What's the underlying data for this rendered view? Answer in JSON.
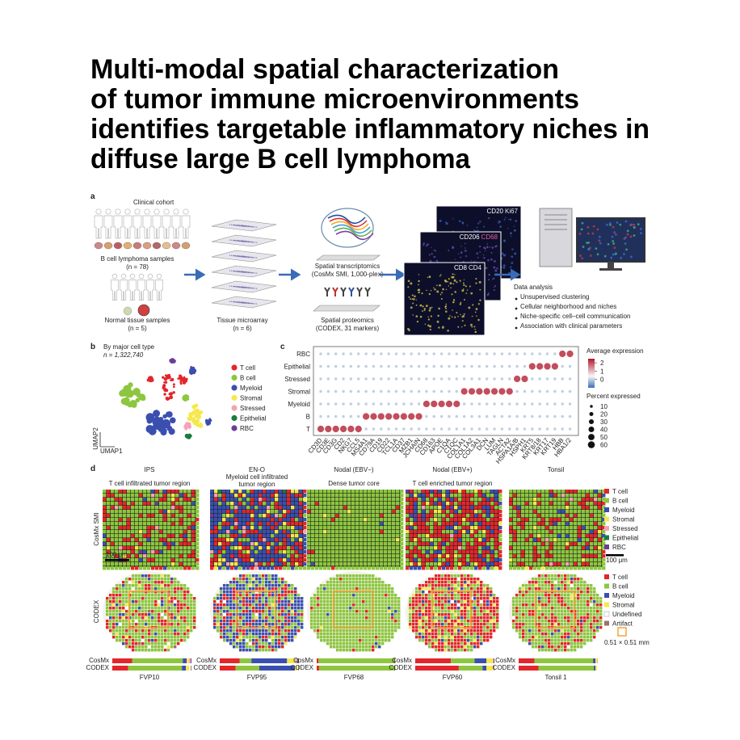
{
  "title": {
    "lines": [
      "Multi-modal spatial characterization",
      "of tumor immune microenvironments",
      "identifies targetable inflammatory niches in",
      "diffuse large B  cell lymphoma"
    ]
  },
  "panel_a": {
    "label": "a",
    "clinical_cohort": "Clinical cohort",
    "lymphoma": "B cell lymphoma samples",
    "lymphoma_n": "(n = 78)",
    "normal": "Normal tissue samples",
    "normal_n": "(n = 5)",
    "tma": "Tissue microarray",
    "tma_n": "(n = 6)",
    "st": "Spatial transcriptomics",
    "st_detail": "(CosMx SMI, 1,000-plex)",
    "sp": "Spatial proteomics",
    "sp_detail": "(CODEX, 31 markers)",
    "image_labels": [
      [
        "CD20",
        "Ki67"
      ],
      [
        "CD206",
        "CD68"
      ],
      [
        "CD8",
        "CD4"
      ]
    ],
    "analysis_title": "Data analysis",
    "analysis_items": [
      "Unsupervised clustering",
      "Cellular neighborhood and niches",
      "Niche-specific cell–cell communication",
      "Association with clinical parameters"
    ]
  },
  "panel_b": {
    "label": "b",
    "title": "By major cell type",
    "n": "n = 1,322,740",
    "x_axis": "UMAP1",
    "y_axis": "UMAP2",
    "legend": [
      {
        "name": "T cell",
        "color": "#e3262b"
      },
      {
        "name": "B cell",
        "color": "#8dc63f"
      },
      {
        "name": "Myeloid",
        "color": "#3a4fb0"
      },
      {
        "name": "Stromal",
        "color": "#f6e84c"
      },
      {
        "name": "Stressed",
        "color": "#f4a3b4"
      },
      {
        "name": "Epithelial",
        "color": "#1c7a3c"
      },
      {
        "name": "RBC",
        "color": "#6a3d9a"
      }
    ]
  },
  "panel_c": {
    "label": "c",
    "rows": [
      "RBC",
      "Epithelial",
      "Stressed",
      "Stromal",
      "Myeloid",
      "B",
      "T"
    ],
    "genes": [
      "CD3D",
      "CD3E",
      "CD3G",
      "CD2",
      "NKG7",
      "CCL5",
      "MS4A1",
      "CD79A",
      "CD19",
      "CD22",
      "TCL1A",
      "CD37",
      "MZB1",
      "JCHAIN",
      "CD68",
      "CD163",
      "APOE",
      "C1QA",
      "C1QC",
      "COL1A1",
      "COL1A2",
      "COL3A1",
      "DCN",
      "LUM",
      "TAGLN",
      "ACTA2",
      "HSPA1A/B",
      "HSPH1",
      "KRT5",
      "KRT8/18",
      "KRT17",
      "KRT19",
      "HBB",
      "HBA1/2"
    ],
    "average_expression": [
      [
        0,
        0,
        0,
        0,
        0,
        0,
        0,
        0,
        0,
        0,
        0,
        0,
        0,
        0,
        0,
        0,
        0,
        0,
        0,
        0,
        0,
        0,
        0,
        0,
        0,
        0,
        0,
        0,
        0,
        0,
        0,
        0,
        2,
        2
      ],
      [
        0,
        0,
        0,
        0,
        0,
        0,
        0,
        0,
        0,
        0,
        0,
        0,
        0,
        0,
        0,
        0,
        0,
        0,
        0,
        0,
        0,
        0,
        0,
        0,
        0,
        0,
        0,
        0,
        2,
        2,
        2,
        2,
        0,
        0
      ],
      [
        0,
        0,
        0,
        0,
        0,
        0,
        0,
        0,
        0,
        0,
        0,
        0,
        0,
        0,
        0,
        0,
        0,
        0,
        0,
        0,
        0,
        0,
        0,
        0,
        0,
        0,
        2,
        2,
        0,
        0,
        0,
        0,
        0,
        0
      ],
      [
        0,
        0,
        0,
        0,
        0,
        0,
        0,
        0,
        0,
        0,
        0,
        0,
        0,
        0,
        0,
        0,
        0,
        0,
        0,
        2,
        2,
        2,
        2,
        2,
        2,
        2,
        0,
        0,
        0,
        0,
        0,
        0,
        0,
        0
      ],
      [
        0,
        0,
        0,
        0,
        0,
        0,
        0,
        0,
        0,
        0,
        0,
        0,
        0,
        0,
        2,
        2,
        2,
        2,
        2,
        0,
        0,
        0,
        0,
        0,
        0,
        0,
        0,
        0,
        0,
        0,
        0,
        0,
        0,
        0
      ],
      [
        0,
        0,
        0,
        0,
        0,
        0,
        2,
        2,
        2,
        2,
        2,
        2,
        2,
        2,
        0,
        0,
        0,
        0,
        0,
        0,
        0,
        0,
        0,
        0,
        0,
        0,
        0,
        0,
        0,
        0,
        0,
        0,
        0,
        0
      ],
      [
        2,
        2,
        2,
        2,
        2,
        2,
        0,
        0,
        0,
        0,
        0,
        0,
        0,
        0,
        0,
        0,
        0,
        0,
        0,
        0,
        0,
        0,
        0,
        0,
        0,
        0,
        0,
        0,
        0,
        0,
        0,
        0,
        0,
        0
      ]
    ],
    "percent_expressed": [
      [
        10,
        10,
        10,
        10,
        10,
        10,
        10,
        10,
        10,
        10,
        10,
        10,
        10,
        10,
        10,
        10,
        10,
        10,
        10,
        10,
        10,
        10,
        10,
        10,
        10,
        10,
        10,
        10,
        10,
        10,
        10,
        10,
        55,
        55
      ],
      [
        10,
        10,
        10,
        10,
        10,
        10,
        10,
        10,
        10,
        10,
        10,
        10,
        10,
        10,
        10,
        10,
        10,
        10,
        10,
        10,
        10,
        10,
        10,
        10,
        10,
        10,
        10,
        10,
        55,
        55,
        55,
        55,
        10,
        10
      ],
      [
        10,
        10,
        10,
        10,
        10,
        10,
        10,
        10,
        10,
        10,
        10,
        10,
        10,
        10,
        10,
        10,
        10,
        10,
        10,
        10,
        10,
        10,
        10,
        10,
        10,
        10,
        55,
        55,
        10,
        10,
        10,
        10,
        10,
        10
      ],
      [
        10,
        10,
        10,
        10,
        10,
        10,
        10,
        10,
        10,
        10,
        10,
        10,
        10,
        10,
        10,
        10,
        10,
        10,
        10,
        55,
        55,
        55,
        55,
        55,
        55,
        55,
        10,
        10,
        10,
        10,
        10,
        10,
        10,
        10
      ],
      [
        10,
        10,
        10,
        10,
        10,
        10,
        10,
        10,
        10,
        10,
        10,
        10,
        10,
        10,
        55,
        55,
        55,
        55,
        55,
        10,
        10,
        10,
        10,
        10,
        10,
        10,
        10,
        10,
        10,
        10,
        10,
        10,
        10,
        10
      ],
      [
        10,
        10,
        10,
        10,
        10,
        10,
        55,
        55,
        55,
        55,
        55,
        55,
        55,
        55,
        10,
        10,
        10,
        10,
        10,
        10,
        10,
        10,
        10,
        10,
        10,
        10,
        10,
        10,
        10,
        10,
        10,
        10,
        10,
        10
      ],
      [
        55,
        55,
        55,
        55,
        55,
        55,
        10,
        10,
        10,
        10,
        10,
        10,
        10,
        10,
        10,
        10,
        10,
        10,
        10,
        10,
        10,
        10,
        10,
        10,
        10,
        10,
        10,
        10,
        10,
        10,
        10,
        10,
        10,
        10
      ]
    ],
    "color_title": "Average expression",
    "color_range": [
      -1,
      2.5
    ],
    "color_ticks": [
      2,
      1,
      0
    ],
    "size_title": "Percent expressed",
    "size_ticks": [
      10,
      20,
      30,
      40,
      50,
      60
    ]
  },
  "panel_d": {
    "label": "d",
    "row_labels": [
      "CosMx SMI",
      "CODEX"
    ],
    "image_scale_bar": "100 μm",
    "bar_labels": [
      "CosMx",
      "CODEX"
    ],
    "columns": [
      {
        "group": "IPS",
        "region": [
          "T cell infiltrated tumor region"
        ],
        "sample": "FVP10",
        "cosmx": [
          25,
          64,
          5,
          3,
          2,
          0,
          1
        ],
        "codex": [
          20,
          68,
          5,
          4,
          2,
          1
        ]
      },
      {
        "group": "EN-O",
        "region": [
          "Myeloid cell infiltrated",
          "tumor region"
        ],
        "sample": "FVP95",
        "cosmx": [
          25,
          15,
          45,
          10,
          3,
          1,
          1
        ],
        "codex": [
          20,
          30,
          45,
          3,
          1,
          1
        ]
      },
      {
        "group": "Nodal (EBV−)",
        "region": [
          "Dense tumor core"
        ],
        "sample": "FVP68",
        "cosmx": [
          2,
          96,
          1,
          1,
          0,
          0,
          0
        ],
        "codex": [
          3,
          95,
          1,
          1,
          0,
          0
        ]
      },
      {
        "group": "Nodal (EBV+)",
        "region": [
          "T cell enriched tumor region"
        ],
        "sample": "FVP60",
        "cosmx": [
          45,
          30,
          15,
          8,
          1,
          0,
          1
        ],
        "codex": [
          55,
          30,
          5,
          8,
          1,
          1
        ]
      },
      {
        "group": "Tonsil",
        "region": [],
        "sample": "Tonsil 1",
        "cosmx": [
          20,
          74,
          3,
          2,
          1,
          0,
          0
        ],
        "codex": [
          25,
          70,
          2,
          2,
          1,
          0
        ]
      }
    ],
    "cosmx_legend": [
      {
        "name": "T cell",
        "color": "#e3262b"
      },
      {
        "name": "B cell",
        "color": "#8dc63f"
      },
      {
        "name": "Myeloid",
        "color": "#3a4fb0"
      },
      {
        "name": "Stromal",
        "color": "#f6e84c"
      },
      {
        "name": "Stressed",
        "color": "#f4a3b4"
      },
      {
        "name": "Epithelial",
        "color": "#1c7a3c"
      },
      {
        "name": "RBC",
        "color": "#6a3d9a"
      }
    ],
    "legend_scale_bar": "100 μm",
    "codex_legend": [
      {
        "name": "T cell",
        "color": "#e3262b"
      },
      {
        "name": "B cell",
        "color": "#8dc63f"
      },
      {
        "name": "Myeloid",
        "color": "#3a4fb0"
      },
      {
        "name": "Stromal",
        "color": "#f6e84c"
      },
      {
        "name": "Undefined",
        "color": "#ffffff"
      },
      {
        "name": "Artifact",
        "color": "#a0706a"
      }
    ],
    "roi_label": "0.51 × 0.51 mm"
  }
}
